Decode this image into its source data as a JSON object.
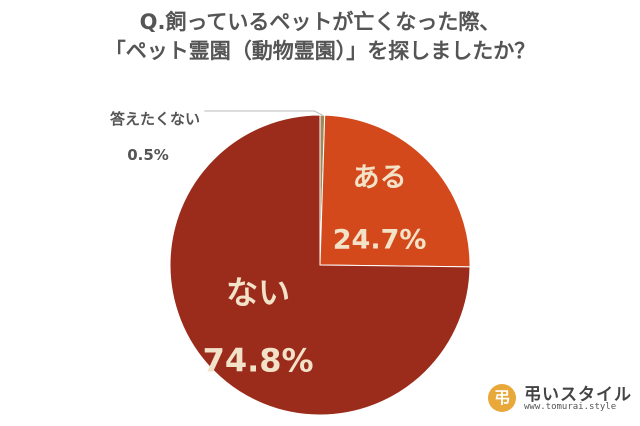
{
  "chart_data": {
    "type": "pie",
    "title_lines": [
      "Q.飼っているペットが亡くなった際、",
      "「ペット霊園（動物霊園）」を探しましたか？"
    ],
    "slices": [
      {
        "label": "答えたくない",
        "value": 0.5,
        "value_label": "0.5%",
        "color": "#a08a5c"
      },
      {
        "label": "ある",
        "value": 24.7,
        "value_label": "24.7%",
        "color": "#d4491c"
      },
      {
        "label": "ない",
        "value": 74.8,
        "value_label": "74.8%",
        "color": "#9b2c1c"
      }
    ],
    "start": "12 o'clock",
    "direction": "clockwise",
    "label_color": "#f2e2c8",
    "outside_label_color": "#555555",
    "leader_line_color": "#bbbbbb"
  },
  "brand": {
    "mark": "弔",
    "name": "弔いスタイル",
    "url": "www.tomurai.style"
  }
}
